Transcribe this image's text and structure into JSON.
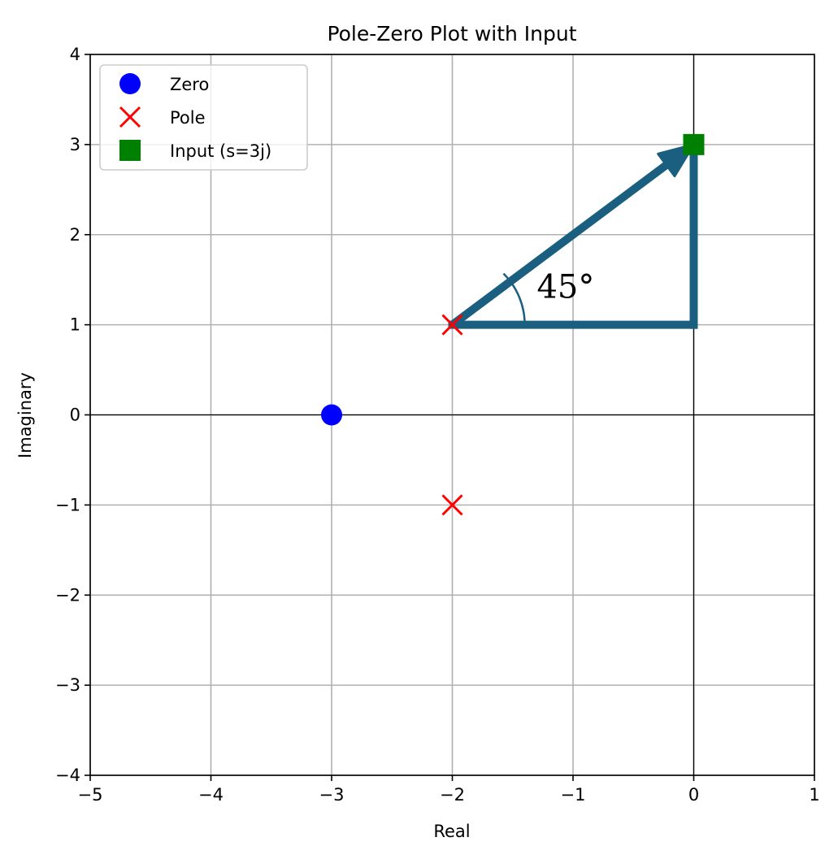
{
  "chart_data": {
    "type": "scatter",
    "title": "Pole-Zero Plot with Input",
    "xlabel": "Real",
    "ylabel": "Imaginary",
    "xlim": [
      -5,
      1
    ],
    "ylim": [
      -4,
      4
    ],
    "xticks": [
      -5,
      -4,
      -3,
      -2,
      -1,
      0,
      1
    ],
    "yticks": [
      -4,
      -3,
      -2,
      -1,
      0,
      1,
      2,
      3,
      4
    ],
    "xtick_labels": [
      "−5",
      "−4",
      "−3",
      "−2",
      "−1",
      "0",
      "1"
    ],
    "ytick_labels": [
      "−4",
      "−3",
      "−2",
      "−1",
      "0",
      "1",
      "2",
      "3",
      "4"
    ],
    "grid": true,
    "legend_position": "top-left",
    "series": [
      {
        "name": "Zero",
        "marker": "circle",
        "color": "#0000ff",
        "points": [
          {
            "x": -3,
            "y": 0
          }
        ]
      },
      {
        "name": "Pole",
        "marker": "x",
        "color": "#ff0000",
        "points": [
          {
            "x": -2,
            "y": 1
          },
          {
            "x": -2,
            "y": -1
          }
        ]
      },
      {
        "name": "Input (s=3j)",
        "marker": "square",
        "color": "#008000",
        "points": [
          {
            "x": 0,
            "y": 3
          }
        ]
      }
    ],
    "annotations": {
      "color": "#1a5f80",
      "vector": {
        "from": {
          "x": -2,
          "y": 1
        },
        "to": {
          "x": 0,
          "y": 3
        }
      },
      "horizontal_leg": {
        "from": {
          "x": -2,
          "y": 1
        },
        "to": {
          "x": 0,
          "y": 1
        }
      },
      "vertical_leg": {
        "from": {
          "x": 0,
          "y": 1
        },
        "to": {
          "x": 0,
          "y": 3
        }
      },
      "angle_arc": {
        "center": {
          "x": -2,
          "y": 1
        },
        "radius": 0.6,
        "start_deg": 0,
        "end_deg": 45
      },
      "angle_label": {
        "text": "45°",
        "x": -1.3,
        "y": 1.3
      }
    }
  }
}
